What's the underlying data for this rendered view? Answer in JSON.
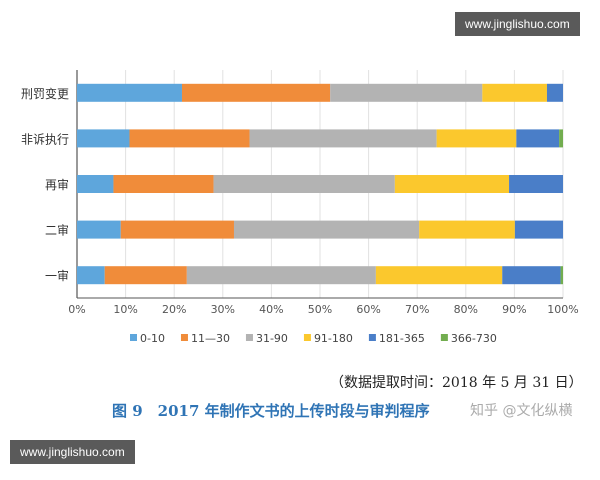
{
  "chart_data": {
    "type": "bar",
    "orientation": "horizontal",
    "stacked": "percent",
    "categories": [
      "刑罚变更",
      "非诉执行",
      "再审",
      "二审",
      "一审"
    ],
    "series": [
      {
        "name": "0-10",
        "color": "#5ea6dc",
        "values": [
          21.6,
          10.8,
          7.5,
          9.0,
          5.7
        ]
      },
      {
        "name": "11—30",
        "color": "#f08c3a",
        "values": [
          30.5,
          24.7,
          20.6,
          23.3,
          16.9
        ]
      },
      {
        "name": "31-90",
        "color": "#b3b3b3",
        "values": [
          31.3,
          38.5,
          37.3,
          38.1,
          38.9
        ]
      },
      {
        "name": "91-180",
        "color": "#fbc82d",
        "values": [
          13.3,
          16.4,
          23.5,
          19.7,
          26.0
        ]
      },
      {
        "name": "181-365",
        "color": "#4a7ec8",
        "values": [
          3.3,
          8.8,
          11.1,
          9.9,
          12.0
        ]
      },
      {
        "name": "366-730",
        "color": "#72ad4f",
        "values": [
          0,
          0.8,
          0,
          0,
          0.5
        ]
      }
    ],
    "xlim": [
      0,
      100
    ],
    "xticks": [
      "0%",
      "10%",
      "20%",
      "30%",
      "40%",
      "50%",
      "60%",
      "70%",
      "80%",
      "90%",
      "100%"
    ],
    "grid": true,
    "legend": "bottom"
  },
  "source": "（数据提取时间：2018 年 5 月 31 日）",
  "caption": "图 9　2017 年制作文书的上传时段与审判程序",
  "watermarks": {
    "top": "www.jinglishuo.com",
    "bottom": "www.jinglishuo.com",
    "zhihu": "知乎 @文化纵横"
  }
}
